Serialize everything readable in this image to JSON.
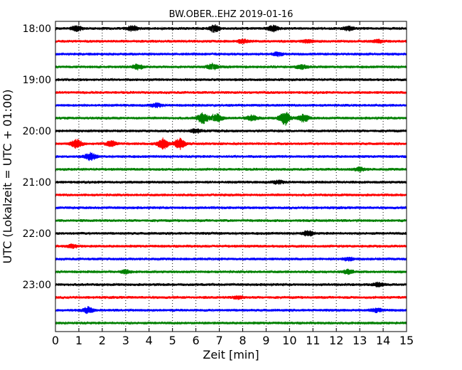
{
  "chart_data": {
    "type": "line",
    "title": "BW.OBER..EHZ 2019-01-16",
    "xlabel": "Zeit  [min]",
    "ylabel": "UTC (Lokalzeit = UTC + 01:00)",
    "xlim": [
      0,
      15
    ],
    "x_ticks": [
      "0",
      "1",
      "2",
      "3",
      "4",
      "5",
      "6",
      "7",
      "8",
      "9",
      "10",
      "11",
      "12",
      "13",
      "14",
      "15"
    ],
    "y_ticks": [
      "18:00",
      "19:00",
      "20:00",
      "21:00",
      "22:00",
      "23:00"
    ],
    "grid": "vertical dotted lines at each minute",
    "trace_interval_minutes": 15,
    "trace_colors": [
      "#000000",
      "#ff0000",
      "#0000ff",
      "#008000"
    ],
    "traces": [
      {
        "start": "18:00",
        "color": "#000000",
        "events": [
          {
            "at": 0.9,
            "amp": 0.4
          },
          {
            "at": 3.3,
            "amp": 0.45
          },
          {
            "at": 6.8,
            "amp": 0.6
          },
          {
            "at": 9.3,
            "amp": 0.5
          },
          {
            "at": 12.5,
            "amp": 0.35
          }
        ]
      },
      {
        "start": "18:15",
        "color": "#ff0000",
        "events": [
          {
            "at": 8.0,
            "amp": 0.3
          },
          {
            "at": 10.8,
            "amp": 0.3
          },
          {
            "at": 13.8,
            "amp": 0.25
          }
        ]
      },
      {
        "start": "18:30",
        "color": "#0000ff",
        "events": [
          {
            "at": 9.5,
            "amp": 0.3
          }
        ]
      },
      {
        "start": "18:45",
        "color": "#008000",
        "events": [
          {
            "at": 3.5,
            "amp": 0.4
          },
          {
            "at": 6.7,
            "amp": 0.5
          },
          {
            "at": 10.5,
            "amp": 0.35
          }
        ]
      },
      {
        "start": "19:00",
        "color": "#000000",
        "events": []
      },
      {
        "start": "19:15",
        "color": "#ff0000",
        "events": []
      },
      {
        "start": "19:30",
        "color": "#0000ff",
        "events": [
          {
            "at": 4.3,
            "amp": 0.3
          }
        ]
      },
      {
        "start": "19:45",
        "color": "#008000",
        "events": [
          {
            "at": 6.3,
            "amp": 0.85
          },
          {
            "at": 6.9,
            "amp": 0.65
          },
          {
            "at": 8.4,
            "amp": 0.45
          },
          {
            "at": 9.8,
            "amp": 1.15
          },
          {
            "at": 10.6,
            "amp": 0.6
          }
        ]
      },
      {
        "start": "20:00",
        "color": "#000000",
        "events": [
          {
            "at": 6.0,
            "amp": 0.3
          }
        ]
      },
      {
        "start": "20:15",
        "color": "#ff0000",
        "events": [
          {
            "at": 0.9,
            "amp": 0.7
          },
          {
            "at": 2.4,
            "amp": 0.5
          },
          {
            "at": 4.6,
            "amp": 0.9
          },
          {
            "at": 5.3,
            "amp": 0.85
          }
        ]
      },
      {
        "start": "20:30",
        "color": "#0000ff",
        "events": [
          {
            "at": 1.5,
            "amp": 0.6
          }
        ]
      },
      {
        "start": "20:45",
        "color": "#008000",
        "events": [
          {
            "at": 13.0,
            "amp": 0.3
          }
        ]
      },
      {
        "start": "21:00",
        "color": "#000000",
        "events": [
          {
            "at": 9.5,
            "amp": 0.25
          }
        ]
      },
      {
        "start": "21:15",
        "color": "#ff0000",
        "events": []
      },
      {
        "start": "21:30",
        "color": "#0000ff",
        "events": []
      },
      {
        "start": "21:45",
        "color": "#008000",
        "events": []
      },
      {
        "start": "22:00",
        "color": "#000000",
        "events": [
          {
            "at": 10.8,
            "amp": 0.45
          }
        ]
      },
      {
        "start": "22:15",
        "color": "#ff0000",
        "events": [
          {
            "at": 0.7,
            "amp": 0.3
          }
        ]
      },
      {
        "start": "22:30",
        "color": "#0000ff",
        "events": [
          {
            "at": 12.5,
            "amp": 0.25
          }
        ]
      },
      {
        "start": "22:45",
        "color": "#008000",
        "events": [
          {
            "at": 3.0,
            "amp": 0.25
          },
          {
            "at": 12.5,
            "amp": 0.3
          }
        ]
      },
      {
        "start": "23:00",
        "color": "#000000",
        "events": [
          {
            "at": 13.8,
            "amp": 0.3
          }
        ]
      },
      {
        "start": "23:15",
        "color": "#ff0000",
        "events": [
          {
            "at": 7.8,
            "amp": 0.25
          }
        ]
      },
      {
        "start": "23:30",
        "color": "#0000ff",
        "events": [
          {
            "at": 1.4,
            "amp": 0.45
          },
          {
            "at": 13.7,
            "amp": 0.3
          }
        ]
      },
      {
        "start": "23:45",
        "color": "#008000",
        "events": []
      }
    ]
  }
}
